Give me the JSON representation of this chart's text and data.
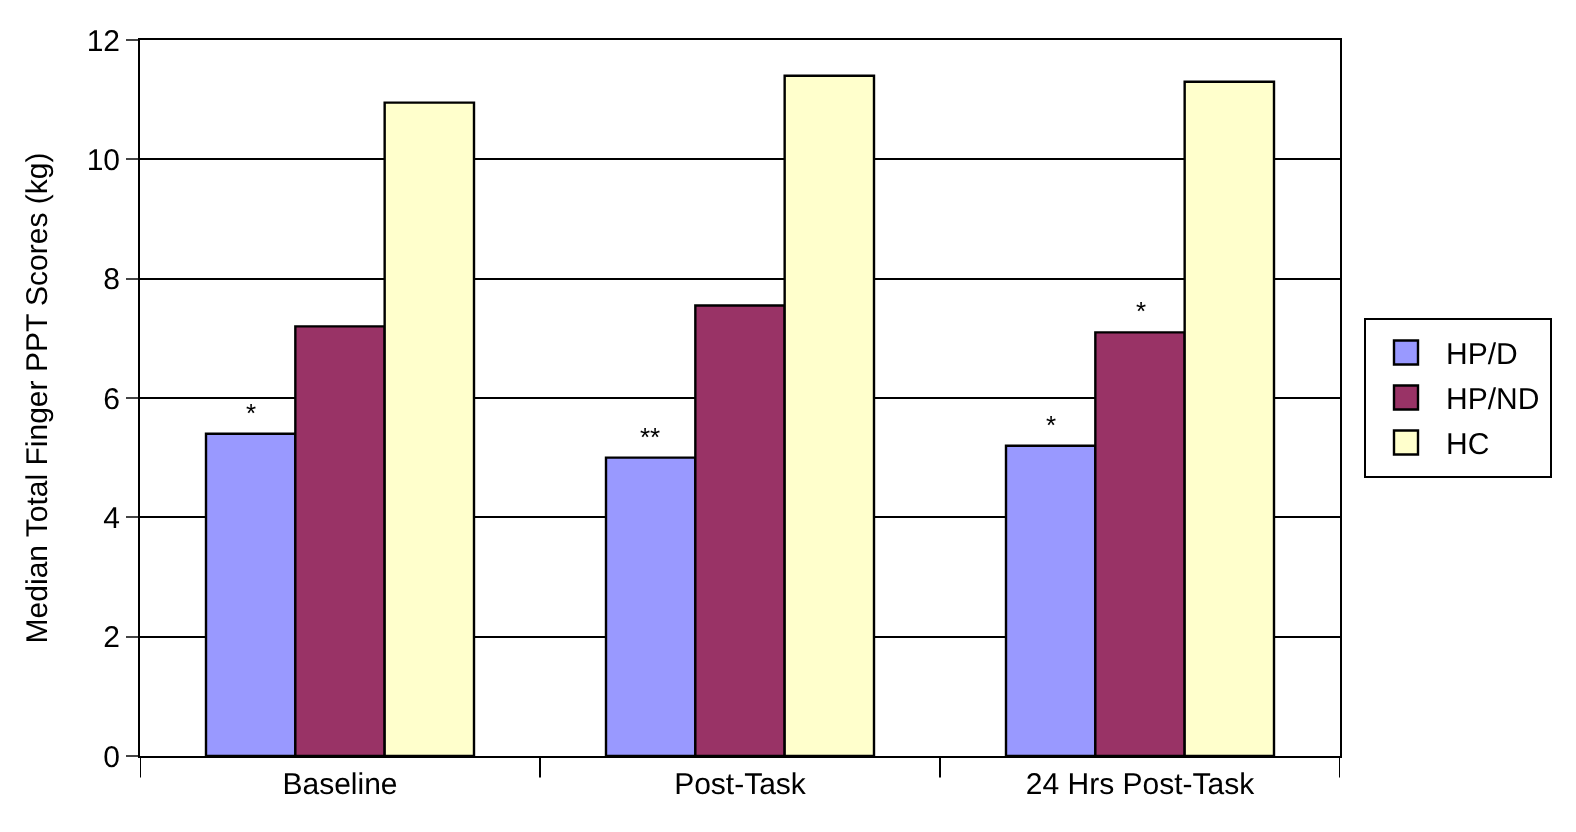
{
  "chart_data": {
    "type": "bar",
    "ylabel": "Median Total Finger PPT Scores (kg)",
    "categories": [
      "Baseline",
      "Post-Task",
      "24 Hrs Post-Task"
    ],
    "series": [
      {
        "name": "HP/D",
        "color": "#9999ff",
        "values": [
          5.4,
          5.0,
          5.2
        ]
      },
      {
        "name": "HP/ND",
        "color": "#993366",
        "values": [
          7.2,
          7.55,
          7.1
        ]
      },
      {
        "name": "HC",
        "color": "#ffffcc",
        "values": [
          10.95,
          11.4,
          11.3
        ]
      }
    ],
    "ylim": [
      0,
      12
    ],
    "yticks": [
      0,
      2,
      4,
      6,
      8,
      10,
      12
    ],
    "grid": "y",
    "legend": "right",
    "annotations": [
      "*",
      "**",
      "*",
      "*"
    ]
  }
}
